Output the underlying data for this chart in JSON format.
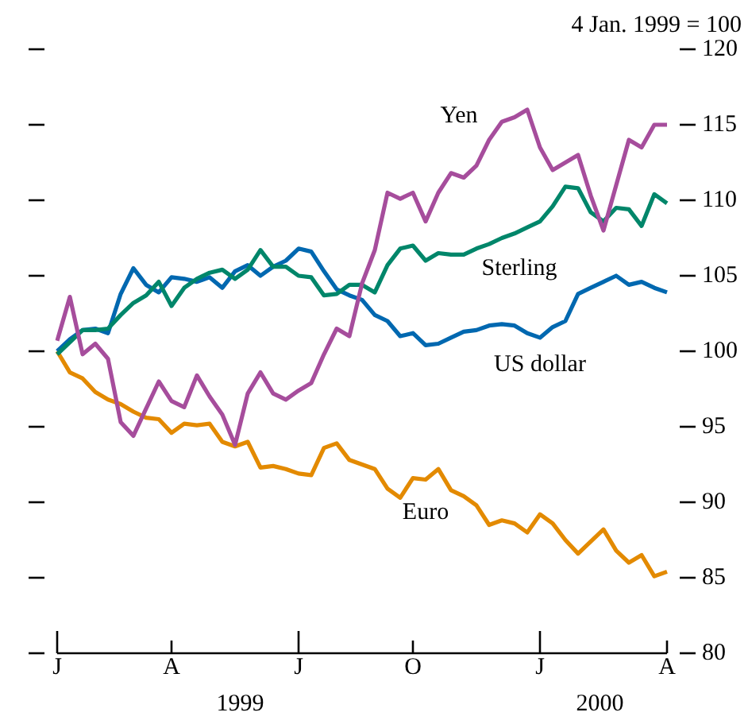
{
  "chart_data": {
    "type": "line",
    "ylabel": "4 Jan. 1999 = 100",
    "annotations": [
      "1999",
      "2000"
    ],
    "categories": [
      "J",
      null,
      null,
      null,
      null,
      null,
      null,
      null,
      null,
      "A",
      null,
      null,
      null,
      null,
      null,
      null,
      null,
      null,
      null,
      "J",
      null,
      null,
      null,
      null,
      null,
      null,
      null,
      null,
      "O",
      null,
      null,
      null,
      null,
      null,
      null,
      null,
      null,
      null,
      "J",
      null,
      null,
      null,
      null,
      null,
      null,
      null,
      null,
      null,
      "A"
    ],
    "series": [
      {
        "name": "Yen",
        "color": "#a64d9c",
        "values": [
          100.7,
          103.6,
          99.8,
          100.5,
          99.5,
          95.3,
          94.4,
          96.2,
          98.0,
          96.7,
          96.3,
          98.4,
          97.0,
          95.8,
          93.8,
          97.2,
          98.6,
          97.2,
          96.8,
          97.4,
          97.9,
          99.8,
          101.5,
          101.0,
          104.5,
          106.7,
          110.5,
          110.1,
          110.5,
          108.6,
          110.5,
          111.8,
          111.5,
          112.3,
          114.0,
          115.2,
          115.5,
          116.0,
          113.5,
          112.0,
          112.5,
          113.0,
          110.3,
          108.0,
          111.0,
          114.0,
          113.5,
          115.0,
          115.0
        ]
      },
      {
        "name": "Sterling",
        "color": "#00866a",
        "values": [
          99.8,
          100.6,
          101.4,
          101.4,
          101.5,
          102.4,
          103.2,
          103.7,
          104.6,
          103.0,
          104.2,
          104.8,
          105.2,
          105.4,
          104.8,
          105.4,
          106.7,
          105.6,
          105.6,
          105.0,
          104.9,
          103.7,
          103.8,
          104.4,
          104.4,
          103.9,
          105.7,
          106.8,
          107.0,
          106.0,
          106.5,
          106.4,
          106.4,
          106.8,
          107.1,
          107.5,
          107.8,
          108.2,
          108.6,
          109.6,
          110.9,
          110.8,
          109.2,
          108.6,
          109.5,
          109.4,
          108.3,
          110.4,
          109.8
        ]
      },
      {
        "name": "US dollar",
        "color": "#0068b0",
        "values": [
          100,
          100.8,
          101.4,
          101.5,
          101.2,
          103.8,
          105.5,
          104.4,
          103.9,
          104.9,
          104.8,
          104.6,
          104.9,
          104.2,
          105.3,
          105.7,
          105.0,
          105.6,
          106.0,
          106.8,
          106.6,
          105.3,
          104.1,
          103.7,
          103.4,
          102.4,
          102.0,
          101.0,
          101.2,
          100.4,
          100.5,
          100.9,
          101.3,
          101.4,
          101.7,
          101.8,
          101.7,
          101.2,
          100.9,
          101.6,
          102.0,
          103.8,
          104.2,
          104.6,
          105.0,
          104.4,
          104.6,
          104.2,
          103.9
        ]
      },
      {
        "name": "Euro",
        "color": "#e38a00",
        "values": [
          100,
          98.6,
          98.2,
          97.3,
          96.8,
          96.5,
          96.0,
          95.6,
          95.5,
          94.6,
          95.2,
          95.1,
          95.2,
          94.0,
          93.7,
          94.0,
          92.3,
          92.4,
          92.2,
          91.9,
          91.8,
          93.6,
          93.9,
          92.8,
          92.5,
          92.2,
          90.9,
          90.3,
          91.6,
          91.5,
          92.2,
          90.8,
          90.4,
          89.8,
          88.5,
          88.8,
          88.6,
          88.0,
          89.2,
          88.6,
          87.5,
          86.6,
          87.4,
          88.2,
          86.8,
          86.0,
          86.5,
          85.1,
          85.4
        ]
      }
    ],
    "ylim": [
      80,
      120
    ],
    "yticks": [
      80,
      85,
      90,
      95,
      100,
      105,
      110,
      115,
      120
    ],
    "legend": false,
    "grid": false
  }
}
